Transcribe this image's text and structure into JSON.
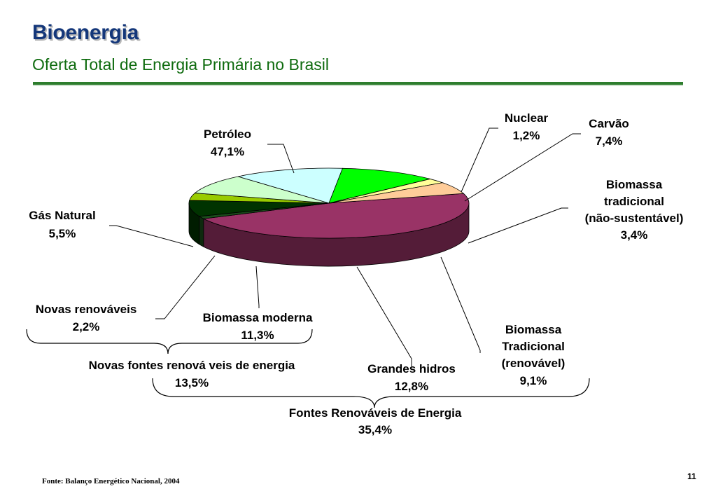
{
  "header": {
    "title": "Bioenergia",
    "subtitle": "Oferta Total de Energia Primária no Brasil"
  },
  "chart_data": {
    "type": "pie",
    "style": "3d",
    "slices": [
      {
        "name": "Petróleo",
        "value": 47.1,
        "label": "47,1%",
        "color": "#993366"
      },
      {
        "name": "Nuclear",
        "value": 1.2,
        "label": "1,2%",
        "color": "#1a4d1a"
      },
      {
        "name": "Carvão",
        "value": 7.4,
        "label": "7,4%",
        "color": "#003300"
      },
      {
        "name": "Biomassa tradicional (não-sustentável)",
        "value": 3.4,
        "label": "3,4%",
        "color": "#99cc00"
      },
      {
        "name": "Biomassa Tradicional (renovável)",
        "value": 9.1,
        "label": "9,1%",
        "color": "#ccffcc"
      },
      {
        "name": "Grandes hidros",
        "value": 12.8,
        "label": "12,8%",
        "color": "#ccffff"
      },
      {
        "name": "Biomassa moderna",
        "value": 11.3,
        "label": "11,3%",
        "color": "#00ff00"
      },
      {
        "name": "Novas renováveis",
        "value": 2.2,
        "label": "2,2%",
        "color": "#ffff99"
      },
      {
        "name": "Gás Natural",
        "value": 5.5,
        "label": "5,5%",
        "color": "#ffcc99"
      }
    ],
    "labels": {
      "petroleo": [
        "Petróleo",
        "47,1%"
      ],
      "nuclear": [
        "Nuclear",
        "1,2%"
      ],
      "carvao": [
        "Carvão",
        "7,4%"
      ],
      "bio_nao_sust": [
        "Biomassa",
        "tradicional",
        "(não-sustentável)",
        "3,4%"
      ],
      "gas": [
        "Gás Natural",
        "5,5%"
      ],
      "novas": [
        "Novas renováveis",
        "2,2%"
      ],
      "bio_moderna": [
        "Biomassa moderna",
        "11,3%"
      ],
      "bio_renov": [
        "Biomassa",
        "Tradicional",
        "(renovável)",
        "9,1%"
      ],
      "hidros": [
        "Grandes hidros",
        "12,8%"
      ]
    },
    "group_labels": {
      "novas_fontes": [
        "Novas fontes renová veis de energia",
        "13,5%"
      ],
      "fontes_renovaveis": [
        "Fontes Renováveis de Energia",
        "35,4%"
      ]
    }
  },
  "footer": {
    "source": "Fonte: Balanço Energético Nacional, 2004",
    "page_number": "11"
  }
}
